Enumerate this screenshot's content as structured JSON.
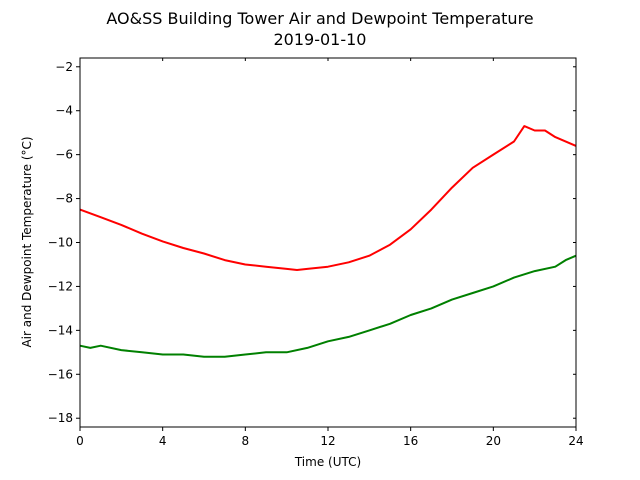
{
  "chart_data": {
    "type": "line",
    "title": "AO&SS Building Tower Air and Dewpoint Temperature",
    "subtitle": "2019-01-10",
    "xlabel": "Time (UTC)",
    "ylabel": "Air and Dewpoint Temperature (°C)",
    "xlim": [
      0,
      24
    ],
    "ylim": [
      -18.4,
      -1.6
    ],
    "xticks": [
      0,
      4,
      8,
      12,
      16,
      20,
      24
    ],
    "yticks": [
      -18,
      -16,
      -14,
      -12,
      -10,
      -8,
      -6,
      -4,
      -2
    ],
    "grid": false,
    "series": [
      {
        "color": "#ff0000",
        "x": [
          0,
          1,
          2,
          3,
          4,
          5,
          6,
          7,
          8,
          9,
          10,
          10.5,
          11,
          12,
          13,
          14,
          15,
          16,
          17,
          18,
          19,
          20,
          21,
          21.5,
          22,
          22.5,
          23,
          24
        ],
        "y": [
          -8.5,
          -8.85,
          -9.2,
          -9.6,
          -9.95,
          -10.25,
          -10.5,
          -10.8,
          -11.0,
          -11.1,
          -11.2,
          -11.25,
          -11.2,
          -11.1,
          -10.9,
          -10.6,
          -10.1,
          -9.4,
          -8.5,
          -7.5,
          -6.6,
          -6.0,
          -5.4,
          -4.7,
          -4.9,
          -4.9,
          -5.2,
          -5.6
        ]
      },
      {
        "color": "#008000",
        "x": [
          0,
          0.5,
          1,
          2,
          3,
          4,
          5,
          6,
          7,
          8,
          9,
          10,
          11,
          12,
          13,
          14,
          15,
          16,
          17,
          18,
          19,
          20,
          21,
          22,
          23,
          23.5,
          24
        ],
        "y": [
          -14.7,
          -14.8,
          -14.7,
          -14.9,
          -15.0,
          -15.1,
          -15.1,
          -15.2,
          -15.2,
          -15.1,
          -15.0,
          -15.0,
          -14.8,
          -14.5,
          -14.3,
          -14.0,
          -13.7,
          -13.3,
          -13.0,
          -12.6,
          -12.3,
          -12.0,
          -11.6,
          -11.3,
          -11.1,
          -10.8,
          -10.6
        ]
      }
    ]
  }
}
